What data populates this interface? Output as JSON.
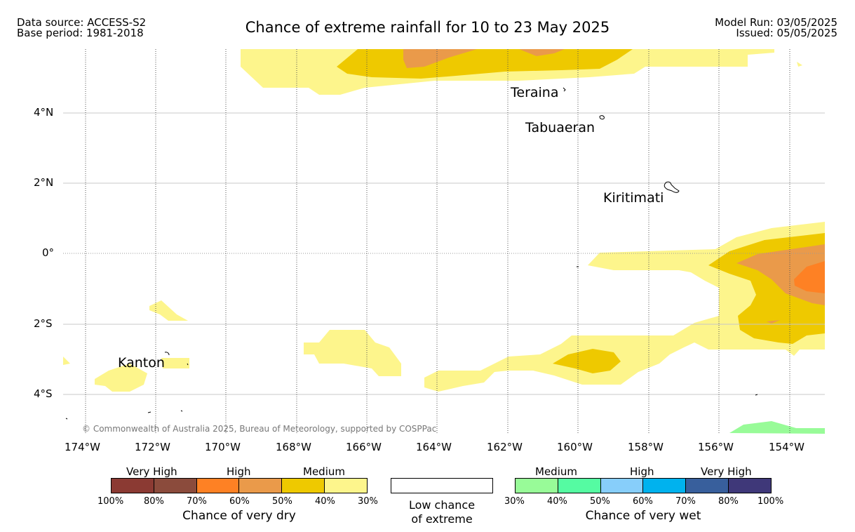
{
  "header": {
    "data_source": "Data source: ACCESS-S2",
    "base_period": "Base period: 1981-2018",
    "title": "Chance of extreme rainfall for 10 to 23 May 2025",
    "model_run": "Model Run: 03/05/2025",
    "issued": "Issued: 05/05/2025"
  },
  "map": {
    "lat_labels": [
      "4°N",
      "2°N",
      "0°",
      "2°S",
      "4°S"
    ],
    "lon_labels": [
      "174°W",
      "172°W",
      "170°W",
      "168°W",
      "166°W",
      "164°W",
      "162°W",
      "160°W",
      "158°W",
      "156°W",
      "154°W"
    ],
    "places": [
      "Teraina",
      "Tabuaeran",
      "Kiritimati",
      "Kanton"
    ],
    "copyright": "© Commonwealth of Australia 2025, Bureau of Meteorology, supported by COSPPac",
    "colors": {
      "dry_30_40": "#fdf58c",
      "dry_40_50": "#eec900",
      "dry_50_60": "#ea9a4a",
      "dry_60_70": "#fe8124",
      "wet_30_40": "#98fb98"
    }
  },
  "legend": {
    "dry": {
      "categories": [
        "Very High",
        "High",
        "Medium"
      ],
      "colors": [
        "#8b3a33",
        "#8b4b3c",
        "#fe8124",
        "#ea9a4a",
        "#eec900",
        "#fdf58c"
      ],
      "ticks": [
        "100%",
        "80%",
        "70%",
        "60%",
        "50%",
        "40%",
        "30%"
      ],
      "caption": "Chance of very dry"
    },
    "low": {
      "line1": "Low chance",
      "line2": "of extreme"
    },
    "wet": {
      "categories": [
        "Medium",
        "High",
        "Very High"
      ],
      "colors": [
        "#98fb98",
        "#55fba2",
        "#87cefa",
        "#00b2ee",
        "#385f9c",
        "#3f3879"
      ],
      "ticks": [
        "30%",
        "40%",
        "50%",
        "60%",
        "70%",
        "80%",
        "100%"
      ],
      "caption": "Chance of very wet"
    }
  }
}
